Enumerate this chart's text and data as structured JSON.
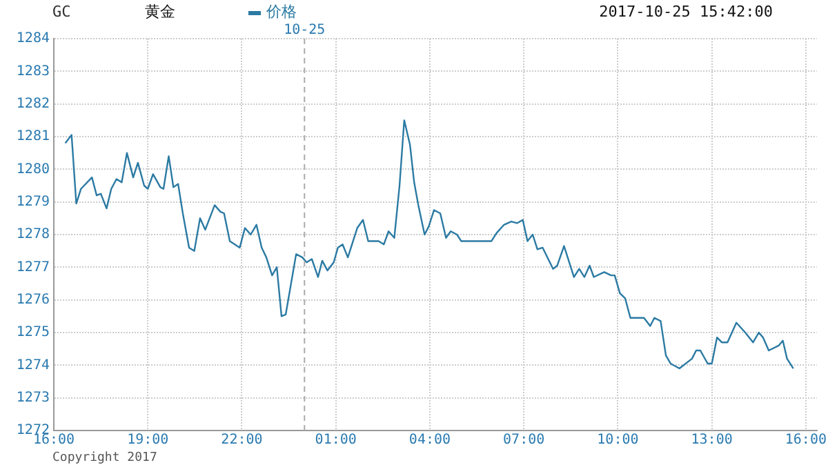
{
  "chart_data": {
    "type": "line",
    "title": "GC",
    "subtitle": "黄金",
    "legend": "top",
    "grid": true,
    "marker": "none",
    "line_style": "solid",
    "annotations": [
      "2017-10-25 15:42:00",
      "Copyright 2017"
    ],
    "xlim": [
      "2017-10-24T16:00",
      "2017-10-25T16:21"
    ],
    "xticks": [
      {
        "value": "2017-10-24T16:00",
        "label": "16:00"
      },
      {
        "value": "2017-10-24T19:00",
        "label": "19:00"
      },
      {
        "value": "2017-10-24T22:00",
        "label": "22:00"
      },
      {
        "value": "2017-10-25T01:00",
        "label": "01:00"
      },
      {
        "value": "2017-10-25T04:00",
        "label": "04:00"
      },
      {
        "value": "2017-10-25T07:00",
        "label": "07:00"
      },
      {
        "value": "2017-10-25T10:00",
        "label": "10:00"
      },
      {
        "value": "2017-10-25T13:00",
        "label": "13:00"
      },
      {
        "value": "2017-10-25T16:00",
        "label": "16:00"
      }
    ],
    "ylim": [
      1272,
      1284
    ],
    "yticks": [
      1272,
      1273,
      1274,
      1275,
      1276,
      1277,
      1278,
      1279,
      1280,
      1281,
      1282,
      1283,
      1284
    ],
    "ref_lines": [
      {
        "axis": "x",
        "value": "2017-10-25T00:00",
        "label": "10-25",
        "color": "#aaaaaa",
        "line_style": "dashed"
      }
    ],
    "series": [
      {
        "name": "价格",
        "color": "#2b7aa3",
        "x": [
          "2017-10-24T16:22",
          "2017-10-24T16:34",
          "2017-10-24T16:43",
          "2017-10-24T16:52",
          "2017-10-24T17:13",
          "2017-10-24T17:22",
          "2017-10-24T17:30",
          "2017-10-24T17:41",
          "2017-10-24T17:50",
          "2017-10-24T18:00",
          "2017-10-24T18:10",
          "2017-10-24T18:20",
          "2017-10-24T18:32",
          "2017-10-24T18:41",
          "2017-10-24T18:53",
          "2017-10-24T19:00",
          "2017-10-24T19:10",
          "2017-10-24T19:24",
          "2017-10-24T19:30",
          "2017-10-24T19:40",
          "2017-10-24T19:49",
          "2017-10-24T19:58",
          "2017-10-24T20:07",
          "2017-10-24T20:19",
          "2017-10-24T20:29",
          "2017-10-24T20:40",
          "2017-10-24T20:50",
          "2017-10-24T21:08",
          "2017-10-24T21:19",
          "2017-10-24T21:26",
          "2017-10-24T21:37",
          "2017-10-24T21:56",
          "2017-10-24T22:06",
          "2017-10-24T22:17",
          "2017-10-24T22:28",
          "2017-10-24T22:38",
          "2017-10-24T22:47",
          "2017-10-24T22:58",
          "2017-10-24T23:07",
          "2017-10-24T23:16",
          "2017-10-24T23:24",
          "2017-10-24T23:44",
          "2017-10-24T23:56",
          "2017-10-25T00:04",
          "2017-10-25T00:14",
          "2017-10-25T00:26",
          "2017-10-25T00:34",
          "2017-10-25T00:44",
          "2017-10-25T00:56",
          "2017-10-25T01:04",
          "2017-10-25T01:13",
          "2017-10-25T01:23",
          "2017-10-25T01:41",
          "2017-10-25T01:52",
          "2017-10-25T02:02",
          "2017-10-25T02:22",
          "2017-10-25T02:32",
          "2017-10-25T02:41",
          "2017-10-25T02:52",
          "2017-10-25T03:02",
          "2017-10-25T03:11",
          "2017-10-25T03:22",
          "2017-10-25T03:30",
          "2017-10-25T03:38",
          "2017-10-25T03:50",
          "2017-10-25T03:58",
          "2017-10-25T04:08",
          "2017-10-25T04:20",
          "2017-10-25T04:31",
          "2017-10-25T04:40",
          "2017-10-25T04:52",
          "2017-10-25T05:00",
          "2017-10-25T05:58",
          "2017-10-25T06:08",
          "2017-10-25T06:22",
          "2017-10-25T06:36",
          "2017-10-25T06:47",
          "2017-10-25T06:58",
          "2017-10-25T07:07",
          "2017-10-25T07:17",
          "2017-10-25T07:26",
          "2017-10-25T07:36",
          "2017-10-25T07:56",
          "2017-10-25T08:04",
          "2017-10-25T08:17",
          "2017-10-25T08:36",
          "2017-10-25T08:46",
          "2017-10-25T08:56",
          "2017-10-25T09:06",
          "2017-10-25T09:14",
          "2017-10-25T09:34",
          "2017-10-25T09:47",
          "2017-10-25T09:54",
          "2017-10-25T10:04",
          "2017-10-25T10:14",
          "2017-10-25T10:24",
          "2017-10-25T10:50",
          "2017-10-25T11:02",
          "2017-10-25T11:10",
          "2017-10-25T11:22",
          "2017-10-25T11:32",
          "2017-10-25T11:41",
          "2017-10-25T11:58",
          "2017-10-25T12:22",
          "2017-10-25T12:30",
          "2017-10-25T12:38",
          "2017-10-25T12:52",
          "2017-10-25T13:00",
          "2017-10-25T13:10",
          "2017-10-25T13:19",
          "2017-10-25T13:30",
          "2017-10-25T13:47",
          "2017-10-25T14:04",
          "2017-10-25T14:19",
          "2017-10-25T14:30",
          "2017-10-25T14:38",
          "2017-10-25T14:49",
          "2017-10-25T15:08",
          "2017-10-25T15:16",
          "2017-10-25T15:24",
          "2017-10-25T15:36"
        ],
        "values": [
          1280.8,
          1281.05,
          1278.95,
          1279.4,
          1279.75,
          1279.2,
          1279.25,
          1278.8,
          1279.4,
          1279.7,
          1279.6,
          1280.5,
          1279.75,
          1280.2,
          1279.5,
          1279.4,
          1279.85,
          1279.45,
          1279.4,
          1280.4,
          1279.45,
          1279.55,
          1278.65,
          1277.6,
          1277.5,
          1278.5,
          1278.15,
          1278.9,
          1278.7,
          1278.65,
          1277.8,
          1277.6,
          1278.2,
          1278.0,
          1278.3,
          1277.6,
          1277.3,
          1276.75,
          1277.0,
          1275.5,
          1275.55,
          1277.4,
          1277.3,
          1277.15,
          1277.25,
          1276.7,
          1277.2,
          1276.9,
          1277.15,
          1277.6,
          1277.7,
          1277.3,
          1278.2,
          1278.45,
          1277.8,
          1277.8,
          1277.7,
          1278.1,
          1277.9,
          1279.5,
          1281.5,
          1280.75,
          1279.6,
          1278.9,
          1278.0,
          1278.25,
          1278.75,
          1278.65,
          1277.9,
          1278.1,
          1278.0,
          1277.8,
          1277.8,
          1278.05,
          1278.3,
          1278.4,
          1278.35,
          1278.45,
          1277.8,
          1278.0,
          1277.55,
          1277.6,
          1276.95,
          1277.05,
          1277.65,
          1276.7,
          1276.95,
          1276.7,
          1277.05,
          1276.7,
          1276.85,
          1276.75,
          1276.75,
          1276.2,
          1276.05,
          1275.45,
          1275.45,
          1275.2,
          1275.45,
          1275.35,
          1274.3,
          1274.05,
          1273.9,
          1274.2,
          1274.45,
          1274.45,
          1274.05,
          1274.05,
          1274.85,
          1274.7,
          1274.7,
          1275.3,
          1275.0,
          1274.7,
          1275.0,
          1274.85,
          1274.45,
          1274.6,
          1274.75,
          1274.2,
          1273.9
        ]
      }
    ]
  }
}
